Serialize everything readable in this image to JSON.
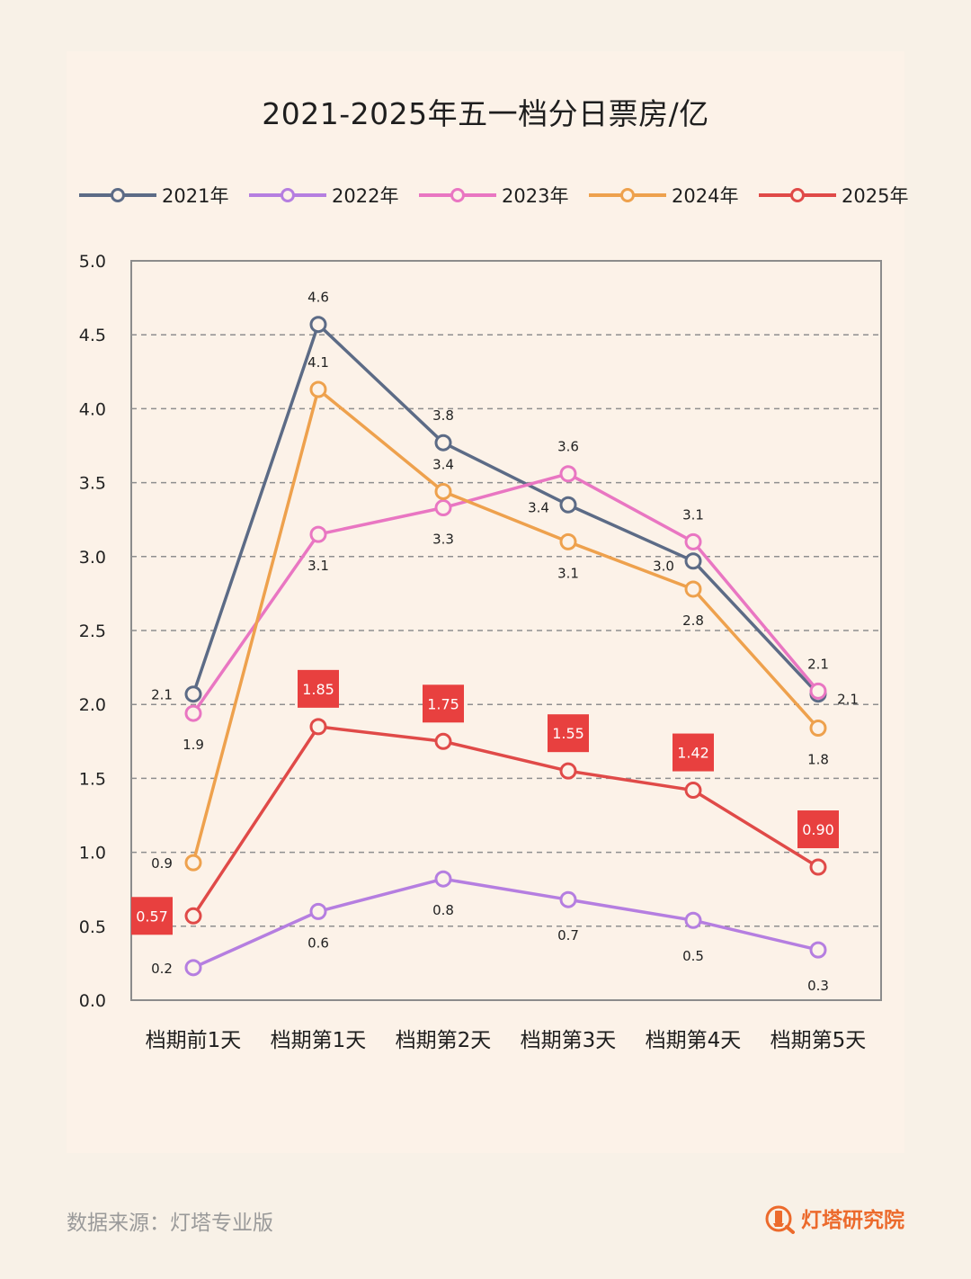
{
  "title": "2021-2025年五一档分日票房/亿",
  "source": "数据来源：灯塔专业版",
  "brand": "灯塔研究院",
  "chart_data": {
    "type": "line",
    "title": "2021-2025年五一档分日票房/亿",
    "categories": [
      "档期前1天",
      "档期第1天",
      "档期第2天",
      "档期第3天",
      "档期第4天",
      "档期第5天"
    ],
    "ylim": [
      0,
      5
    ],
    "yticks": [
      "0.0",
      "0.5",
      "1.0",
      "1.5",
      "2.0",
      "2.5",
      "3.0",
      "3.5",
      "4.0",
      "4.5",
      "5.0"
    ],
    "legend_position": "top",
    "grid": "horizontal-dashed",
    "series": [
      {
        "name": "2021年",
        "color": "#5c6b86",
        "values": [
          2.07,
          4.57,
          3.77,
          3.35,
          2.97,
          2.07
        ],
        "labels": [
          "2.1",
          "4.6",
          "3.8",
          "3.4",
          "3.0",
          "2.1"
        ]
      },
      {
        "name": "2022年",
        "color": "#b57ee0",
        "values": [
          0.22,
          0.6,
          0.82,
          0.68,
          0.54,
          0.34
        ],
        "labels": [
          "0.2",
          "0.6",
          "0.8",
          "0.7",
          "0.5",
          "0.3"
        ]
      },
      {
        "name": "2023年",
        "color": "#e976c2",
        "values": [
          1.94,
          3.15,
          3.33,
          3.56,
          3.1,
          2.09
        ],
        "labels": [
          "1.9",
          "3.1",
          "3.3",
          "3.6",
          "3.1",
          "2.1"
        ]
      },
      {
        "name": "2024年",
        "color": "#eea14d",
        "values": [
          0.93,
          4.13,
          3.44,
          3.1,
          2.78,
          1.84
        ],
        "labels": [
          "0.9",
          "4.1",
          "3.4",
          "3.1",
          "2.8",
          "1.8"
        ]
      },
      {
        "name": "2025年",
        "color": "#e04a48",
        "values": [
          0.57,
          1.85,
          1.75,
          1.55,
          1.42,
          0.9
        ],
        "labels": [
          "0.57",
          "1.85",
          "1.75",
          "1.55",
          "1.42",
          "0.90"
        ]
      }
    ]
  }
}
